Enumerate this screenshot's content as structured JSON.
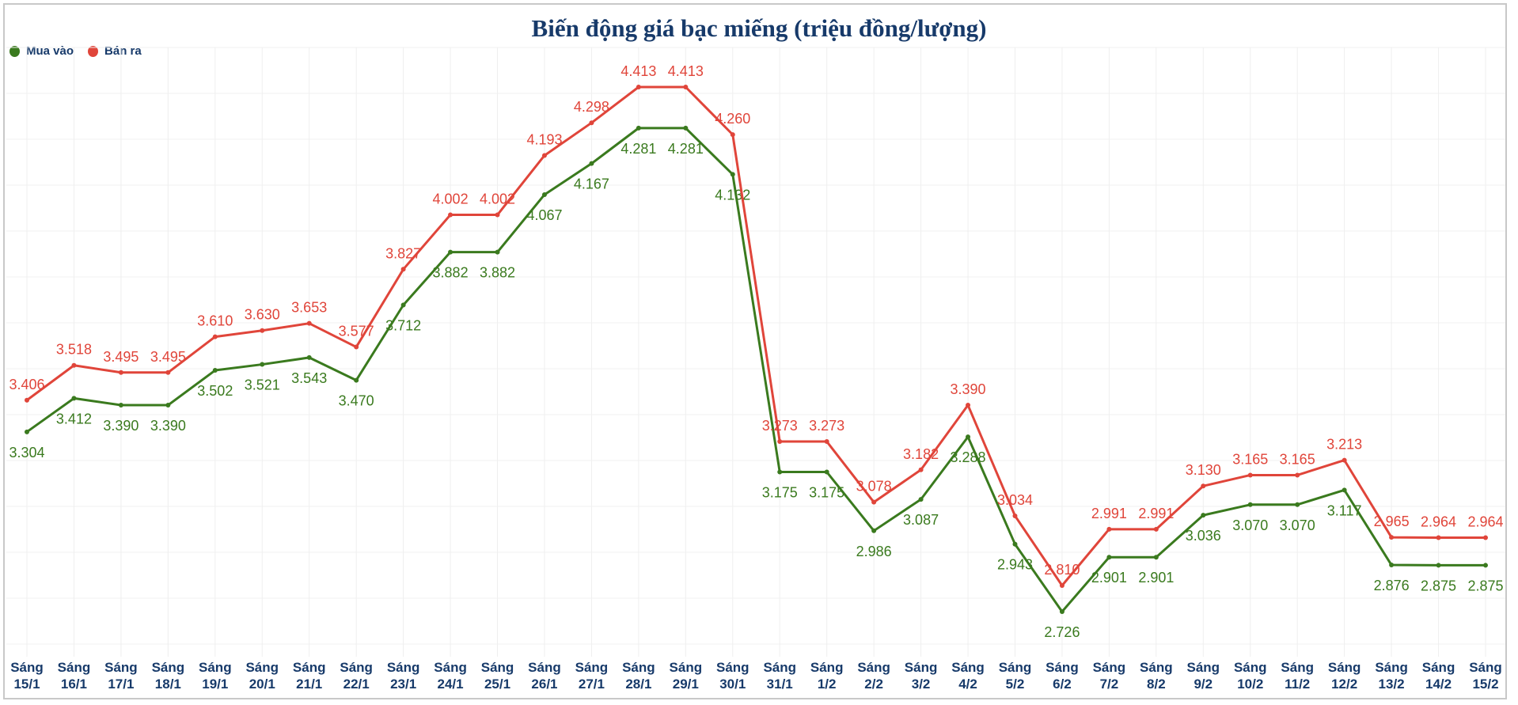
{
  "chart_data": {
    "type": "line",
    "title": "Biến động giá bạc miếng (triệu đồng/lượng)",
    "legend_position": "top-left",
    "grid": true,
    "categories": [
      "Sáng 15/1",
      "Sáng 16/1",
      "Sáng 17/1",
      "Sáng 18/1",
      "Sáng 19/1",
      "Sáng 20/1",
      "Sáng 21/1",
      "Sáng 22/1",
      "Sáng 23/1",
      "Sáng 24/1",
      "Sáng 25/1",
      "Sáng 26/1",
      "Sáng 27/1",
      "Sáng 28/1",
      "Sáng 29/1",
      "Sáng 30/1",
      "Sáng 31/1",
      "Sáng 1/2",
      "Sáng 2/2",
      "Sáng 3/2",
      "Sáng 4/2",
      "Sáng 5/2",
      "Sáng 6/2",
      "Sáng 7/2",
      "Sáng 8/2",
      "Sáng 9/2",
      "Sáng 10/2",
      "Sáng 11/2",
      "Sáng 12/2",
      "Sáng 13/2",
      "Sáng 14/2",
      "Sáng 15/2"
    ],
    "series": [
      {
        "name": "Mua vào",
        "color": "#3a7a1e",
        "values": [
          3.304,
          3.412,
          3.39,
          3.39,
          3.502,
          3.521,
          3.543,
          3.47,
          3.712,
          3.882,
          3.882,
          4.067,
          4.167,
          4.281,
          4.281,
          4.132,
          3.175,
          3.175,
          2.986,
          3.087,
          3.288,
          2.943,
          2.726,
          2.901,
          2.901,
          3.036,
          3.07,
          3.07,
          3.117,
          2.876,
          2.875,
          2.875
        ]
      },
      {
        "name": "Bán ra",
        "color": "#e0453a",
        "values": [
          3.406,
          3.518,
          3.495,
          3.495,
          3.61,
          3.63,
          3.653,
          3.577,
          3.827,
          4.002,
          4.002,
          4.193,
          4.298,
          4.413,
          4.413,
          4.26,
          3.273,
          3.273,
          3.078,
          3.182,
          3.39,
          3.034,
          2.81,
          2.991,
          2.991,
          3.13,
          3.165,
          3.165,
          3.213,
          2.965,
          2.964,
          2.964
        ]
      }
    ]
  }
}
